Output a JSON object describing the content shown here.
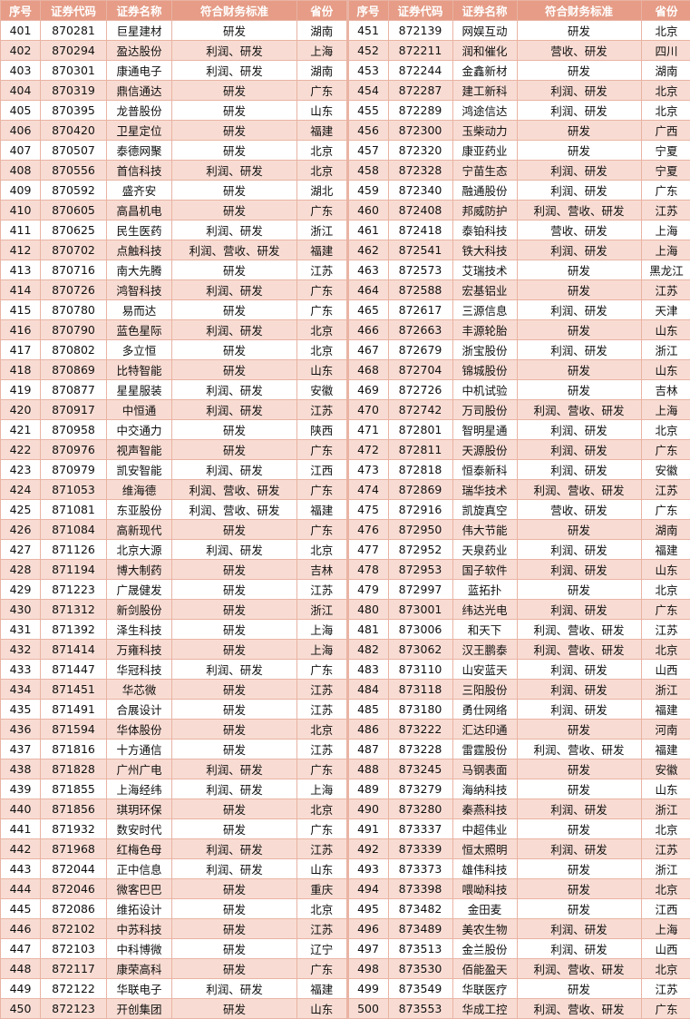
{
  "colors": {
    "header_bg": "#e69c86",
    "header_text": "#ffffff",
    "alt_row": "#f8dcd3",
    "border": "#e9b3a3"
  },
  "headers": [
    "序号",
    "证券代码",
    "证券名称",
    "符合财务标准",
    "省份"
  ],
  "left_rows": [
    [
      "401",
      "870281",
      "巨星建材",
      "研发",
      "湖南"
    ],
    [
      "402",
      "870294",
      "盈达股份",
      "利润、研发",
      "上海"
    ],
    [
      "403",
      "870301",
      "康通电子",
      "利润、研发",
      "湖南"
    ],
    [
      "404",
      "870319",
      "鼎信通达",
      "研发",
      "广东"
    ],
    [
      "405",
      "870395",
      "龙普股份",
      "研发",
      "山东"
    ],
    [
      "406",
      "870420",
      "卫星定位",
      "研发",
      "福建"
    ],
    [
      "407",
      "870507",
      "泰德网聚",
      "研发",
      "北京"
    ],
    [
      "408",
      "870556",
      "首信科技",
      "利润、研发",
      "北京"
    ],
    [
      "409",
      "870592",
      "盛齐安",
      "研发",
      "湖北"
    ],
    [
      "410",
      "870605",
      "高昌机电",
      "研发",
      "广东"
    ],
    [
      "411",
      "870625",
      "民生医药",
      "利润、研发",
      "浙江"
    ],
    [
      "412",
      "870702",
      "点触科技",
      "利润、营收、研发",
      "福建"
    ],
    [
      "413",
      "870716",
      "南大先腾",
      "研发",
      "江苏"
    ],
    [
      "414",
      "870726",
      "鸿智科技",
      "利润、研发",
      "广东"
    ],
    [
      "415",
      "870780",
      "易而达",
      "研发",
      "广东"
    ],
    [
      "416",
      "870790",
      "蓝色星际",
      "利润、研发",
      "北京"
    ],
    [
      "417",
      "870802",
      "多立恒",
      "研发",
      "北京"
    ],
    [
      "418",
      "870869",
      "比特智能",
      "研发",
      "山东"
    ],
    [
      "419",
      "870877",
      "星星服装",
      "利润、研发",
      "安徽"
    ],
    [
      "420",
      "870917",
      "中恒通",
      "利润、研发",
      "江苏"
    ],
    [
      "421",
      "870958",
      "中交通力",
      "研发",
      "陕西"
    ],
    [
      "422",
      "870976",
      "视声智能",
      "研发",
      "广东"
    ],
    [
      "423",
      "870979",
      "凯安智能",
      "利润、研发",
      "江西"
    ],
    [
      "424",
      "871053",
      "维海德",
      "利润、营收、研发",
      "广东"
    ],
    [
      "425",
      "871081",
      "东亚股份",
      "利润、营收、研发",
      "福建"
    ],
    [
      "426",
      "871084",
      "高新现代",
      "研发",
      "广东"
    ],
    [
      "427",
      "871126",
      "北京大源",
      "利润、研发",
      "北京"
    ],
    [
      "428",
      "871194",
      "博大制药",
      "研发",
      "吉林"
    ],
    [
      "429",
      "871223",
      "广晟健发",
      "研发",
      "江苏"
    ],
    [
      "430",
      "871312",
      "新剑股份",
      "研发",
      "浙江"
    ],
    [
      "431",
      "871392",
      "泽生科技",
      "研发",
      "上海"
    ],
    [
      "432",
      "871414",
      "万雍科技",
      "研发",
      "上海"
    ],
    [
      "433",
      "871447",
      "华冠科技",
      "利润、研发",
      "广东"
    ],
    [
      "434",
      "871451",
      "华芯微",
      "研发",
      "江苏"
    ],
    [
      "435",
      "871491",
      "合展设计",
      "研发",
      "江苏"
    ],
    [
      "436",
      "871594",
      "华体股份",
      "研发",
      "北京"
    ],
    [
      "437",
      "871816",
      "十方通信",
      "研发",
      "江苏"
    ],
    [
      "438",
      "871828",
      "广州广电",
      "利润、研发",
      "广东"
    ],
    [
      "439",
      "871855",
      "上海经纬",
      "利润、研发",
      "上海"
    ],
    [
      "440",
      "871856",
      "琪玥环保",
      "研发",
      "北京"
    ],
    [
      "441",
      "871932",
      "数安时代",
      "研发",
      "广东"
    ],
    [
      "442",
      "871968",
      "红梅色母",
      "利润、研发",
      "江苏"
    ],
    [
      "443",
      "872044",
      "正中信息",
      "利润、研发",
      "山东"
    ],
    [
      "444",
      "872046",
      "微客巴巴",
      "研发",
      "重庆"
    ],
    [
      "445",
      "872086",
      "维拓设计",
      "研发",
      "北京"
    ],
    [
      "446",
      "872102",
      "中苏科技",
      "研发",
      "江苏"
    ],
    [
      "447",
      "872103",
      "中科博微",
      "研发",
      "辽宁"
    ],
    [
      "448",
      "872117",
      "康荣高科",
      "研发",
      "广东"
    ],
    [
      "449",
      "872122",
      "华联电子",
      "利润、研发",
      "福建"
    ],
    [
      "450",
      "872123",
      "开创集团",
      "研发",
      "山东"
    ]
  ],
  "right_rows": [
    [
      "451",
      "872139",
      "网娱互动",
      "研发",
      "北京"
    ],
    [
      "452",
      "872211",
      "润和催化",
      "营收、研发",
      "四川"
    ],
    [
      "453",
      "872244",
      "金鑫新材",
      "研发",
      "湖南"
    ],
    [
      "454",
      "872287",
      "建工新科",
      "利润、研发",
      "北京"
    ],
    [
      "455",
      "872289",
      "鸿途信达",
      "利润、研发",
      "北京"
    ],
    [
      "456",
      "872300",
      "玉柴动力",
      "研发",
      "广西"
    ],
    [
      "457",
      "872320",
      "康亚药业",
      "研发",
      "宁夏"
    ],
    [
      "458",
      "872328",
      "宁苗生态",
      "利润、研发",
      "宁夏"
    ],
    [
      "459",
      "872340",
      "融通股份",
      "利润、研发",
      "广东"
    ],
    [
      "460",
      "872408",
      "邦威防护",
      "利润、营收、研发",
      "江苏"
    ],
    [
      "461",
      "872418",
      "泰铂科技",
      "营收、研发",
      "上海"
    ],
    [
      "462",
      "872541",
      "铁大科技",
      "利润、研发",
      "上海"
    ],
    [
      "463",
      "872573",
      "艾瑞技术",
      "研发",
      "黑龙江"
    ],
    [
      "464",
      "872588",
      "宏基铝业",
      "研发",
      "江苏"
    ],
    [
      "465",
      "872617",
      "三源信息",
      "利润、研发",
      "天津"
    ],
    [
      "466",
      "872663",
      "丰源轮胎",
      "研发",
      "山东"
    ],
    [
      "467",
      "872679",
      "浙宝股份",
      "利润、研发",
      "浙江"
    ],
    [
      "468",
      "872704",
      "锦城股份",
      "研发",
      "山东"
    ],
    [
      "469",
      "872726",
      "中机试验",
      "研发",
      "吉林"
    ],
    [
      "470",
      "872742",
      "万司股份",
      "利润、营收、研发",
      "上海"
    ],
    [
      "471",
      "872801",
      "智明星通",
      "利润、研发",
      "北京"
    ],
    [
      "472",
      "872811",
      "天源股份",
      "利润、研发",
      "广东"
    ],
    [
      "473",
      "872818",
      "恒泰新科",
      "利润、研发",
      "安徽"
    ],
    [
      "474",
      "872869",
      "瑞华技术",
      "利润、营收、研发",
      "江苏"
    ],
    [
      "475",
      "872916",
      "凯旋真空",
      "营收、研发",
      "广东"
    ],
    [
      "476",
      "872950",
      "伟大节能",
      "研发",
      "湖南"
    ],
    [
      "477",
      "872952",
      "天泉药业",
      "利润、研发",
      "福建"
    ],
    [
      "478",
      "872953",
      "国子软件",
      "利润、研发",
      "山东"
    ],
    [
      "479",
      "872997",
      "蓝拓扑",
      "研发",
      "北京"
    ],
    [
      "480",
      "873001",
      "纬达光电",
      "利润、研发",
      "广东"
    ],
    [
      "481",
      "873006",
      "和天下",
      "利润、营收、研发",
      "江苏"
    ],
    [
      "482",
      "873062",
      "汉王鹏泰",
      "利润、营收、研发",
      "北京"
    ],
    [
      "483",
      "873110",
      "山安蓝天",
      "利润、研发",
      "山西"
    ],
    [
      "484",
      "873118",
      "三阳股份",
      "利润、研发",
      "浙江"
    ],
    [
      "485",
      "873180",
      "勇仕网络",
      "利润、研发",
      "福建"
    ],
    [
      "486",
      "873222",
      "汇达印通",
      "研发",
      "河南"
    ],
    [
      "487",
      "873228",
      "雷霆股份",
      "利润、营收、研发",
      "福建"
    ],
    [
      "488",
      "873245",
      "马钢表面",
      "研发",
      "安徽"
    ],
    [
      "489",
      "873279",
      "海纳科技",
      "研发",
      "山东"
    ],
    [
      "490",
      "873280",
      "秦燕科技",
      "利润、研发",
      "浙江"
    ],
    [
      "491",
      "873337",
      "中超伟业",
      "研发",
      "北京"
    ],
    [
      "492",
      "873339",
      "恒太照明",
      "利润、研发",
      "江苏"
    ],
    [
      "493",
      "873373",
      "雄伟科技",
      "研发",
      "浙江"
    ],
    [
      "494",
      "873398",
      "喂呦科技",
      "研发",
      "北京"
    ],
    [
      "495",
      "873482",
      "金田麦",
      "研发",
      "江西"
    ],
    [
      "496",
      "873489",
      "美农生物",
      "利润、研发",
      "上海"
    ],
    [
      "497",
      "873513",
      "金兰股份",
      "利润、研发",
      "山西"
    ],
    [
      "498",
      "873530",
      "佰能盈天",
      "利润、营收、研发",
      "北京"
    ],
    [
      "499",
      "873549",
      "华联医疗",
      "研发",
      "江苏"
    ],
    [
      "500",
      "873553",
      "华成工控",
      "利润、营收、研发",
      "广东"
    ]
  ]
}
